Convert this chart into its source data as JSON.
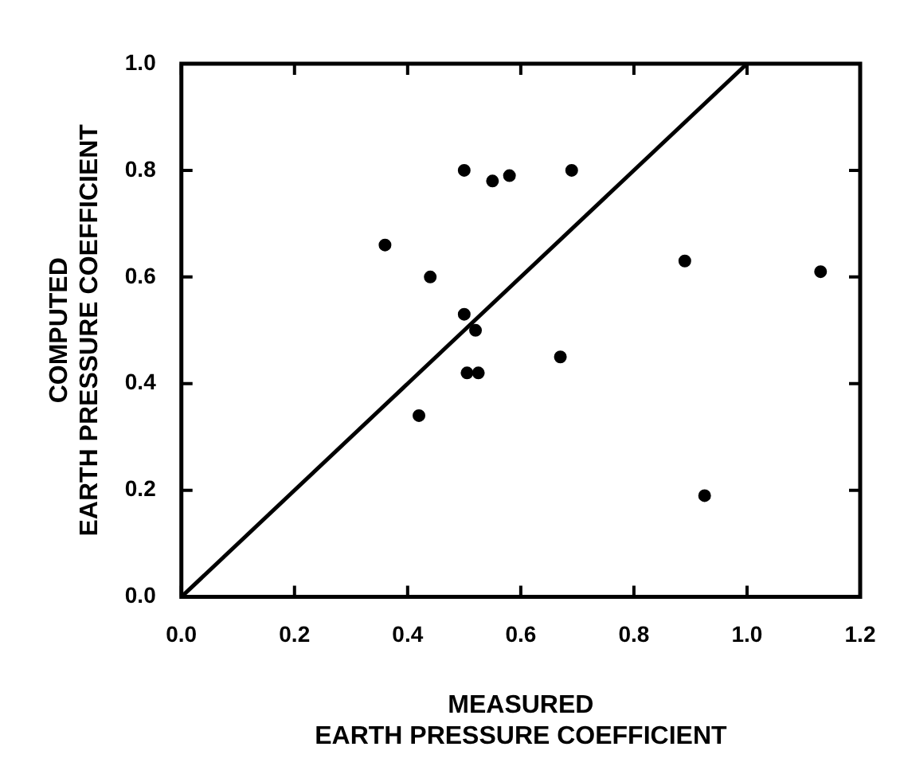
{
  "chart_data": {
    "type": "scatter",
    "xlabel": "MEASURED\nEARTH PRESSURE COEFFICIENT",
    "ylabel": "COMPUTED\nEARTH PRESSURE COEFFICIENT",
    "xlim": [
      0,
      1.2
    ],
    "xticks": [
      {
        "value": 0,
        "label": "0.0"
      },
      0.2,
      0.4,
      0.6,
      0.8,
      {
        "value": 1,
        "label": "1.0"
      },
      1.2
    ],
    "ylim": [
      0,
      1
    ],
    "yticks": [
      {
        "value": 0,
        "label": "0.0"
      },
      0.2,
      0.4,
      0.6,
      0.8,
      {
        "value": 1,
        "label": "1.0"
      }
    ],
    "marker": "circle",
    "series": [
      {
        "color": "#000000",
        "x": [
          0.36,
          0.44,
          0.42,
          0.5,
          0.55,
          0.58,
          0.69,
          0.5,
          0.52,
          0.505,
          0.525,
          0.67,
          0.89,
          0.925,
          1.13
        ],
        "values": [
          0.66,
          0.6,
          0.34,
          0.8,
          0.78,
          0.79,
          0.8,
          0.53,
          0.5,
          0.42,
          0.42,
          0.45,
          0.63,
          0.19,
          0.61
        ]
      },
      {
        "type": "line",
        "color": "#000000",
        "x": [
          0,
          1
        ],
        "values": [
          0,
          1
        ],
        "marker": "none"
      }
    ]
  }
}
